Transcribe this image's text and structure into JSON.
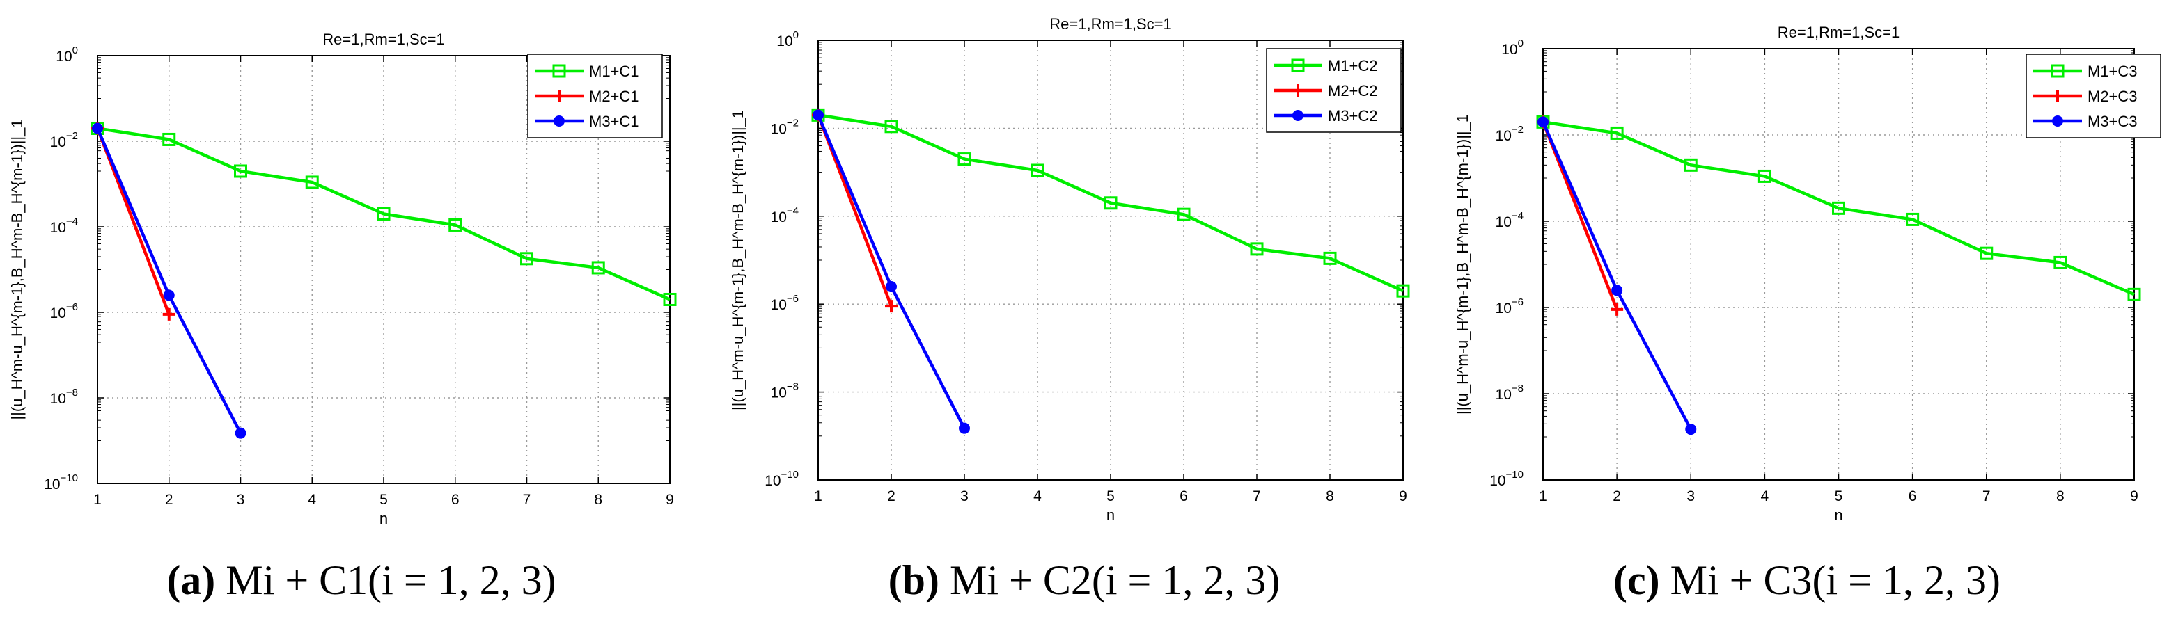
{
  "chart_data": [
    {
      "type": "line",
      "title": "Re=1,Rm=1,Sc=1",
      "xlabel": "n",
      "ylabel": "||(u_H^m-u_H^{m-1},B_H^m-B_H^{m-1})||_1",
      "yscale": "log",
      "xlim": [
        1,
        9
      ],
      "ylim": [
        1e-10,
        1
      ],
      "grid": true,
      "legend_position": "top-right",
      "xticks": [
        "1",
        "2",
        "3",
        "4",
        "5",
        "6",
        "7",
        "8",
        "9"
      ],
      "yticks": [
        {
          "base": "10",
          "exp": "0"
        },
        {
          "base": "10",
          "exp": "−2"
        },
        {
          "base": "10",
          "exp": "−4"
        },
        {
          "base": "10",
          "exp": "−6"
        },
        {
          "base": "10",
          "exp": "−8"
        },
        {
          "base": "10",
          "exp": "−10"
        }
      ],
      "series": [
        {
          "name": "M1+C1",
          "color": "#00ee00",
          "marker": "square",
          "x": [
            1,
            2,
            3,
            4,
            5,
            6,
            7,
            8,
            9
          ],
          "values": [
            0.02,
            0.011,
            0.002,
            0.0011,
            0.0002,
            0.00011,
            1.8e-05,
            1.1e-05,
            2e-06
          ]
        },
        {
          "name": "M2+C1",
          "color": "#ff0000",
          "marker": "plus",
          "x": [
            1,
            2
          ],
          "values": [
            0.02,
            9e-07
          ]
        },
        {
          "name": "M3+C1",
          "color": "#0000ff",
          "marker": "circle",
          "x": [
            1,
            2,
            3
          ],
          "values": [
            0.02,
            2.5e-06,
            1.5e-09
          ]
        }
      ],
      "caption": {
        "label": "(a)",
        "text": "Mi + C1(i = 1, 2, 3)"
      }
    },
    {
      "type": "line",
      "title": "Re=1,Rm=1,Sc=1",
      "xlabel": "n",
      "ylabel": "||(u_H^m-u_H^{m-1},B_H^m-B_H^{m-1})||_1",
      "yscale": "log",
      "xlim": [
        1,
        9
      ],
      "ylim": [
        1e-10,
        1
      ],
      "grid": true,
      "legend_position": "top-right",
      "xticks": [
        "1",
        "2",
        "3",
        "4",
        "5",
        "6",
        "7",
        "8",
        "9"
      ],
      "yticks": [
        {
          "base": "10",
          "exp": "0"
        },
        {
          "base": "10",
          "exp": "−2"
        },
        {
          "base": "10",
          "exp": "−4"
        },
        {
          "base": "10",
          "exp": "−6"
        },
        {
          "base": "10",
          "exp": "−8"
        },
        {
          "base": "10",
          "exp": "−10"
        }
      ],
      "series": [
        {
          "name": "M1+C2",
          "color": "#00ee00",
          "marker": "square",
          "x": [
            1,
            2,
            3,
            4,
            5,
            6,
            7,
            8,
            9
          ],
          "values": [
            0.02,
            0.011,
            0.002,
            0.0011,
            0.0002,
            0.00011,
            1.8e-05,
            1.1e-05,
            2e-06
          ]
        },
        {
          "name": "M2+C2",
          "color": "#ff0000",
          "marker": "plus",
          "x": [
            1,
            2
          ],
          "values": [
            0.02,
            9e-07
          ]
        },
        {
          "name": "M3+C2",
          "color": "#0000ff",
          "marker": "circle",
          "x": [
            1,
            2,
            3
          ],
          "values": [
            0.02,
            2.5e-06,
            1.5e-09
          ]
        }
      ],
      "caption": {
        "label": "(b)",
        "text": "Mi + C2(i = 1, 2, 3)"
      }
    },
    {
      "type": "line",
      "title": "Re=1,Rm=1,Sc=1",
      "xlabel": "n",
      "ylabel": "||(u_H^m-u_H^{m-1},B_H^m-B_H^{m-1})||_1",
      "yscale": "log",
      "xlim": [
        1,
        9
      ],
      "ylim": [
        1e-10,
        1
      ],
      "grid": true,
      "legend_position": "top-right",
      "xticks": [
        "1",
        "2",
        "3",
        "4",
        "5",
        "6",
        "7",
        "8",
        "9"
      ],
      "yticks": [
        {
          "base": "10",
          "exp": "0"
        },
        {
          "base": "10",
          "exp": "−2"
        },
        {
          "base": "10",
          "exp": "−4"
        },
        {
          "base": "10",
          "exp": "−6"
        },
        {
          "base": "10",
          "exp": "−8"
        },
        {
          "base": "10",
          "exp": "−10"
        }
      ],
      "series": [
        {
          "name": "M1+C3",
          "color": "#00ee00",
          "marker": "square",
          "x": [
            1,
            2,
            3,
            4,
            5,
            6,
            7,
            8,
            9
          ],
          "values": [
            0.02,
            0.011,
            0.002,
            0.0011,
            0.0002,
            0.00011,
            1.8e-05,
            1.1e-05,
            2e-06
          ]
        },
        {
          "name": "M2+C3",
          "color": "#ff0000",
          "marker": "plus",
          "x": [
            1,
            2
          ],
          "values": [
            0.02,
            9e-07
          ]
        },
        {
          "name": "M3+C3",
          "color": "#0000ff",
          "marker": "circle",
          "x": [
            1,
            2,
            3
          ],
          "values": [
            0.02,
            2.5e-06,
            1.5e-09
          ]
        }
      ],
      "caption": {
        "label": "(c)",
        "text": "Mi + C3(i = 1, 2, 3)"
      }
    }
  ]
}
